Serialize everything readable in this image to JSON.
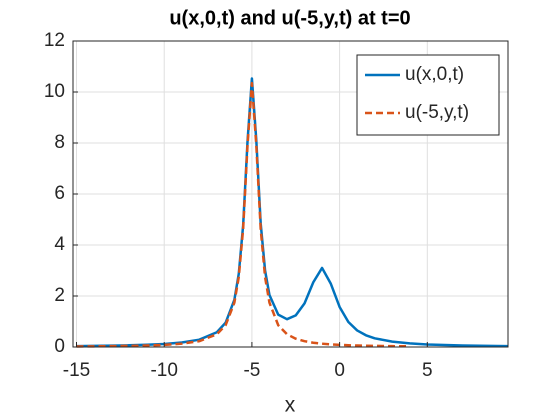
{
  "chart_data": {
    "type": "line",
    "title": "u(x,0,t) and u(-5,y,t) at t=0",
    "xlabel": "x",
    "x": [
      -15,
      -14,
      -13,
      -12,
      -11,
      -10,
      -9,
      -8,
      -7,
      -6.5,
      -6,
      -5.75,
      -5.5,
      -5.25,
      -5,
      -4.75,
      -4.5,
      -4.25,
      -4,
      -3.5,
      -3,
      -2.5,
      -2,
      -1.5,
      -1,
      -0.5,
      0,
      0.5,
      1,
      1.5,
      2,
      3,
      4,
      5,
      6,
      7,
      8,
      9,
      9.6
    ],
    "series": [
      {
        "name": "u(x,0,t)",
        "color": "#0072BD",
        "dash": false,
        "values": [
          0.036,
          0.043,
          0.053,
          0.067,
          0.087,
          0.119,
          0.176,
          0.287,
          0.579,
          0.95,
          1.85,
          2.87,
          4.77,
          8.07,
          10.53,
          8.11,
          4.85,
          3.0,
          2.04,
          1.27,
          1.09,
          1.24,
          1.71,
          2.54,
          3.1,
          2.48,
          1.57,
          0.98,
          0.65,
          0.46,
          0.34,
          0.21,
          0.14,
          0.1,
          0.076,
          0.061,
          0.048,
          0.039,
          0.035
        ]
      },
      {
        "name": "u(-5,y,t)",
        "color": "#D95319",
        "dash": true,
        "values": [
          0.021,
          0.026,
          0.033,
          0.043,
          0.058,
          0.083,
          0.13,
          0.228,
          0.499,
          0.855,
          1.74,
          2.74,
          4.63,
          7.91,
          10.35,
          7.91,
          4.63,
          2.74,
          1.74,
          0.855,
          0.499,
          0.325,
          0.228,
          0.168,
          0.13,
          0.102,
          0.083,
          0.069,
          0.058,
          0.049,
          0.043,
          0.033,
          0.026,
          null,
          null,
          null,
          null,
          null,
          null
        ]
      }
    ],
    "xlim": [
      -15.2,
      9.6
    ],
    "xticks": [
      -15,
      -10,
      -5,
      0,
      5
    ],
    "ylim": [
      0,
      12
    ],
    "yticks": [
      0,
      2,
      4,
      6,
      8,
      10,
      12
    ],
    "grid": true,
    "legend": "northeast"
  }
}
